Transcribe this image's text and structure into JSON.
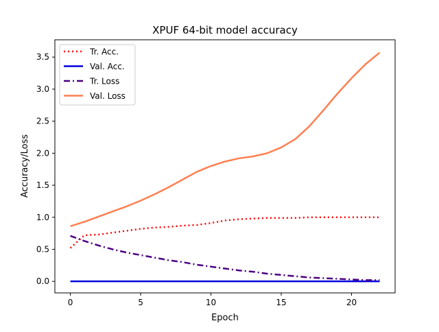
{
  "chart_data": {
    "type": "line",
    "title": "XPUF 64-bit model accuracy",
    "xlabel": "Epoch",
    "ylabel": "Accuracy/Loss",
    "xlim": [
      -1.1,
      23.1
    ],
    "ylim": [
      -0.18,
      3.77
    ],
    "xticks": [
      0,
      5,
      10,
      15,
      20
    ],
    "yticks": [
      0.0,
      0.5,
      1.0,
      1.5,
      2.0,
      2.5,
      3.0,
      3.5
    ],
    "xtick_labels": [
      "0",
      "5",
      "10",
      "15",
      "20"
    ],
    "ytick_labels": [
      "0.0",
      "0.5",
      "1.0",
      "1.5",
      "2.0",
      "2.5",
      "3.0",
      "3.5"
    ],
    "grid": false,
    "legend_position": "top-left",
    "x": [
      0,
      1,
      2,
      3,
      4,
      5,
      6,
      7,
      8,
      9,
      10,
      11,
      12,
      13,
      14,
      15,
      16,
      17,
      18,
      19,
      20,
      21,
      22
    ],
    "series": [
      {
        "name": "Tr. Acc.",
        "color": "#ff0000",
        "style": "dotted",
        "values": [
          0.52,
          0.72,
          0.73,
          0.76,
          0.79,
          0.82,
          0.84,
          0.85,
          0.87,
          0.88,
          0.91,
          0.95,
          0.97,
          0.98,
          0.99,
          0.99,
          0.99,
          1.0,
          1.0,
          1.0,
          1.0,
          1.0,
          1.0
        ]
      },
      {
        "name": "Val. Acc.",
        "color": "#0000dd",
        "style": "solid",
        "values": [
          0.0,
          0.0,
          0.0,
          0.0,
          0.0,
          0.0,
          0.0,
          0.0,
          0.0,
          0.0,
          0.0,
          0.0,
          0.0,
          0.0,
          0.0,
          0.0,
          0.0,
          0.0,
          0.0,
          0.0,
          0.0,
          0.0,
          0.0
        ]
      },
      {
        "name": "Tr. Loss",
        "color": "#4b0082",
        "style": "dashdot",
        "values": [
          0.71,
          0.63,
          0.56,
          0.5,
          0.45,
          0.41,
          0.37,
          0.33,
          0.3,
          0.26,
          0.23,
          0.2,
          0.17,
          0.15,
          0.12,
          0.1,
          0.08,
          0.06,
          0.05,
          0.04,
          0.03,
          0.02,
          0.02
        ]
      },
      {
        "name": "Val. Loss",
        "color": "#ff7f50",
        "style": "solid",
        "values": [
          0.86,
          0.93,
          1.01,
          1.09,
          1.17,
          1.26,
          1.36,
          1.47,
          1.59,
          1.71,
          1.8,
          1.87,
          1.92,
          1.95,
          2.0,
          2.09,
          2.22,
          2.42,
          2.67,
          2.93,
          3.17,
          3.39,
          3.57
        ]
      }
    ]
  }
}
